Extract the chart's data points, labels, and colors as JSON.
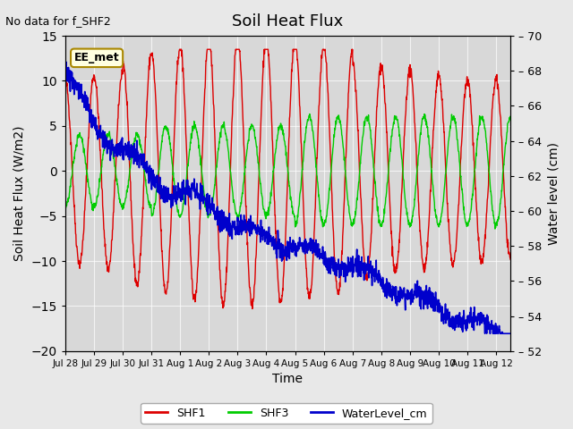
{
  "title": "Soil Heat Flux",
  "top_left_text": "No data for f_SHF2",
  "annotation_box": "EE_met",
  "xlabel": "Time",
  "ylabel_left": "Soil Heat Flux (W/m2)",
  "ylabel_right": "Water level (cm)",
  "ylim_left": [
    -20,
    15
  ],
  "ylim_right": [
    52,
    70
  ],
  "yticks_left": [
    -20,
    -15,
    -10,
    -5,
    0,
    5,
    10,
    15
  ],
  "yticks_right": [
    52,
    54,
    56,
    58,
    60,
    62,
    64,
    66,
    68,
    70
  ],
  "bg_color": "#e8e8e8",
  "plot_bg_color": "#d8d8d8",
  "shf1_color": "#dd0000",
  "shf3_color": "#00cc00",
  "water_color": "#0000cc",
  "total_days": 15.5,
  "x_tick_labels": [
    "Jul 28",
    "Jul 29",
    "Jul 30",
    "Jul 31",
    "Aug 1",
    "Aug 2",
    "Aug 3",
    "Aug 4",
    "Aug 5",
    "Aug 6",
    "Aug 7",
    "Aug 8",
    "Aug 9",
    "Aug 10",
    "Aug 11",
    "Aug 12"
  ],
  "legend_items": [
    "SHF1",
    "SHF3",
    "WaterLevel_cm"
  ]
}
